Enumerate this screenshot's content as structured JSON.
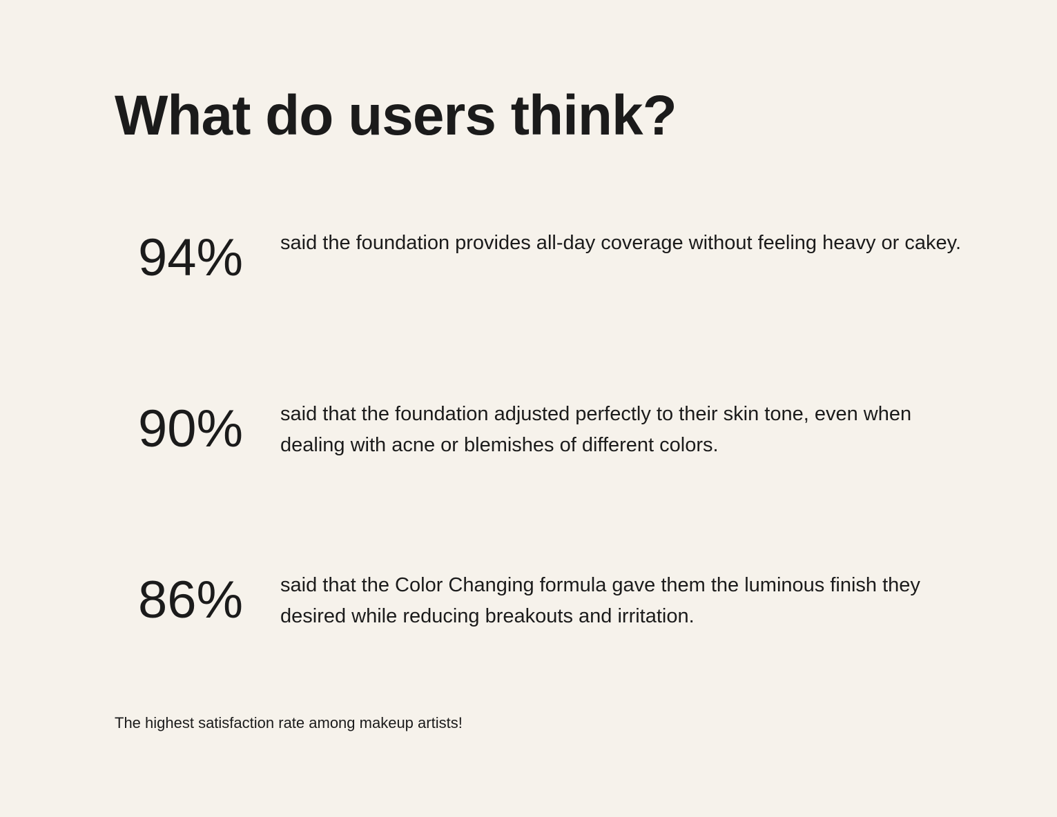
{
  "header": {
    "title": "What do users think?"
  },
  "stats": [
    {
      "value": "94%",
      "text": "said the foundation provides all-day coverage without feeling heavy or cakey."
    },
    {
      "value": "90%",
      "text": "said that the foundation adjusted perfectly to their skin tone, even when dealing with acne or blemishes of different colors."
    },
    {
      "value": "86%",
      "text": "said that the Color Changing formula gave them the luminous finish they desired while reducing breakouts and irritation."
    }
  ],
  "footer": {
    "note": "The highest satisfaction rate among makeup artists!"
  }
}
